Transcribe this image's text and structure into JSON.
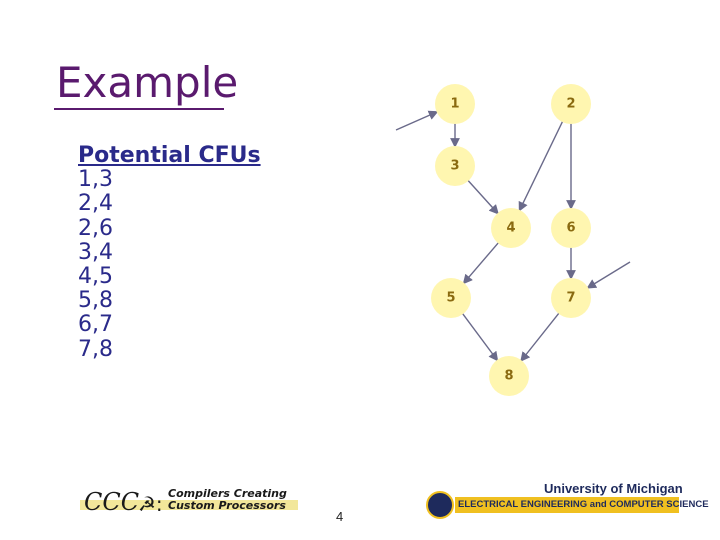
{
  "slide": {
    "title": "Example",
    "page_number": "4"
  },
  "cfu_list": {
    "heading": "Potential CFUs",
    "items": [
      "1,3",
      "2,4",
      "2,6",
      "3,4",
      "4,5",
      "5,8",
      "6,7",
      "7,8"
    ]
  },
  "graph": {
    "nodes": [
      {
        "id": "1",
        "label": "1"
      },
      {
        "id": "2",
        "label": "2"
      },
      {
        "id": "3",
        "label": "3"
      },
      {
        "id": "4",
        "label": "4"
      },
      {
        "id": "5",
        "label": "5"
      },
      {
        "id": "6",
        "label": "6"
      },
      {
        "id": "7",
        "label": "7"
      },
      {
        "id": "8",
        "label": "8"
      }
    ],
    "edges": [
      [
        "1",
        "3"
      ],
      [
        "2",
        "4"
      ],
      [
        "2",
        "6"
      ],
      [
        "3",
        "4"
      ],
      [
        "4",
        "5"
      ],
      [
        "5",
        "8"
      ],
      [
        "6",
        "7"
      ],
      [
        "7",
        "8"
      ]
    ],
    "external_inputs": [
      "1",
      "7"
    ],
    "node_color": "#fff6b0",
    "edge_color": "#6a6a8a"
  },
  "footer": {
    "ccc_logo_text": "CCC",
    "ccc_line1": "Compilers Creating",
    "ccc_line2": "Custom Processors",
    "university": "University of Michigan",
    "department": "ELECTRICAL ENGINEERING and COMPUTER SCIENCE",
    "brand_blue": "#1e2a5c",
    "brand_maize": "#f0c020"
  }
}
